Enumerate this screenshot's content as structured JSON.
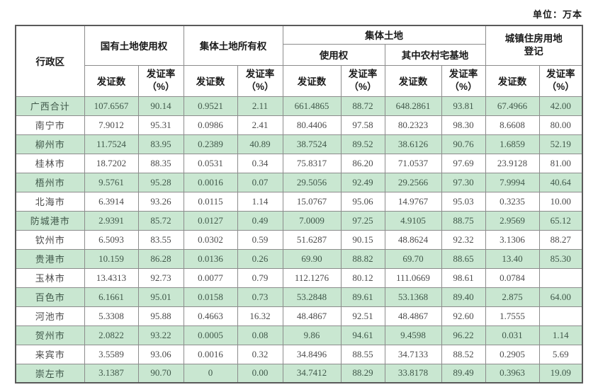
{
  "meta": {
    "unit_label": "单位：万本"
  },
  "table": {
    "header": {
      "region": "行政区",
      "group_state_owned": "国有土地使用权",
      "group_collective_ownership": "集体土地所有权",
      "group_collective_land": "集体土地",
      "sub_use_right": "使用权",
      "sub_rural_homestead": "其中农村宅基地",
      "group_urban_housing": "城镇住房用地登记",
      "count_label": "发证数",
      "rate_label": "发证率",
      "rate_unit": "（%）"
    },
    "rows": [
      {
        "region": "广西合计",
        "values": [
          "107.6567",
          "90.14",
          "0.9521",
          "2.11",
          "661.4865",
          "88.72",
          "648.2861",
          "93.81",
          "67.4966",
          "42.00"
        ]
      },
      {
        "region": "南宁市",
        "values": [
          "7.9012",
          "95.31",
          "0.0986",
          "2.41",
          "80.4406",
          "97.58",
          "80.2323",
          "98.30",
          "8.6608",
          "80.00"
        ]
      },
      {
        "region": "柳州市",
        "values": [
          "11.7524",
          "83.95",
          "0.2389",
          "40.89",
          "38.7524",
          "89.52",
          "38.6126",
          "90.76",
          "1.6859",
          "52.19"
        ]
      },
      {
        "region": "桂林市",
        "values": [
          "18.7202",
          "88.35",
          "0.0531",
          "0.34",
          "75.8317",
          "86.20",
          "71.0537",
          "97.69",
          "23.9128",
          "81.00"
        ]
      },
      {
        "region": "梧州市",
        "values": [
          "9.5761",
          "95.28",
          "0.0016",
          "0.07",
          "29.5056",
          "92.49",
          "29.2566",
          "97.30",
          "7.9994",
          "40.64"
        ]
      },
      {
        "region": "北海市",
        "values": [
          "6.3914",
          "93.26",
          "0.0115",
          "1.14",
          "15.0767",
          "95.06",
          "14.9767",
          "95.03",
          "0.3235",
          "10.00"
        ]
      },
      {
        "region": "防城港市",
        "values": [
          "2.9391",
          "85.72",
          "0.0127",
          "0.49",
          "7.0009",
          "97.25",
          "4.9105",
          "88.75",
          "2.9569",
          "65.12"
        ]
      },
      {
        "region": "钦州市",
        "values": [
          "6.5093",
          "83.55",
          "0.0302",
          "0.59",
          "51.6287",
          "90.15",
          "48.8624",
          "92.32",
          "3.1306",
          "88.27"
        ]
      },
      {
        "region": "贵港市",
        "values": [
          "10.159",
          "86.28",
          "0.0136",
          "0.26",
          "69.90",
          "88.82",
          "69.70",
          "88.65",
          "13.40",
          "85.30"
        ]
      },
      {
        "region": "玉林市",
        "values": [
          "13.4313",
          "92.73",
          "0.0077",
          "0.79",
          "112.1276",
          "80.12",
          "111.0669",
          "98.61",
          "0.0784",
          ""
        ]
      },
      {
        "region": "百色市",
        "values": [
          "6.1661",
          "95.01",
          "0.0158",
          "0.73",
          "53.2848",
          "89.61",
          "53.1368",
          "89.40",
          "2.875",
          "64.00"
        ]
      },
      {
        "region": "河池市",
        "values": [
          "5.3308",
          "95.88",
          "0.4663",
          "16.32",
          "48.4867",
          "92.51",
          "48.4867",
          "92.60",
          "1.7555",
          ""
        ]
      },
      {
        "region": "贺州市",
        "values": [
          "2.0822",
          "93.22",
          "0.0005",
          "0.08",
          "9.86",
          "94.61",
          "9.4598",
          "96.22",
          "0.031",
          "1.14"
        ]
      },
      {
        "region": "来宾市",
        "values": [
          "3.5589",
          "93.06",
          "0.0016",
          "0.32",
          "34.8496",
          "88.55",
          "34.7133",
          "88.52",
          "0.2905",
          "5.69"
        ]
      },
      {
        "region": "崇左市",
        "values": [
          "3.1387",
          "90.70",
          "0",
          "0.00",
          "34.7412",
          "88.29",
          "33.8178",
          "89.49",
          "0.3963",
          "19.09"
        ]
      }
    ]
  }
}
